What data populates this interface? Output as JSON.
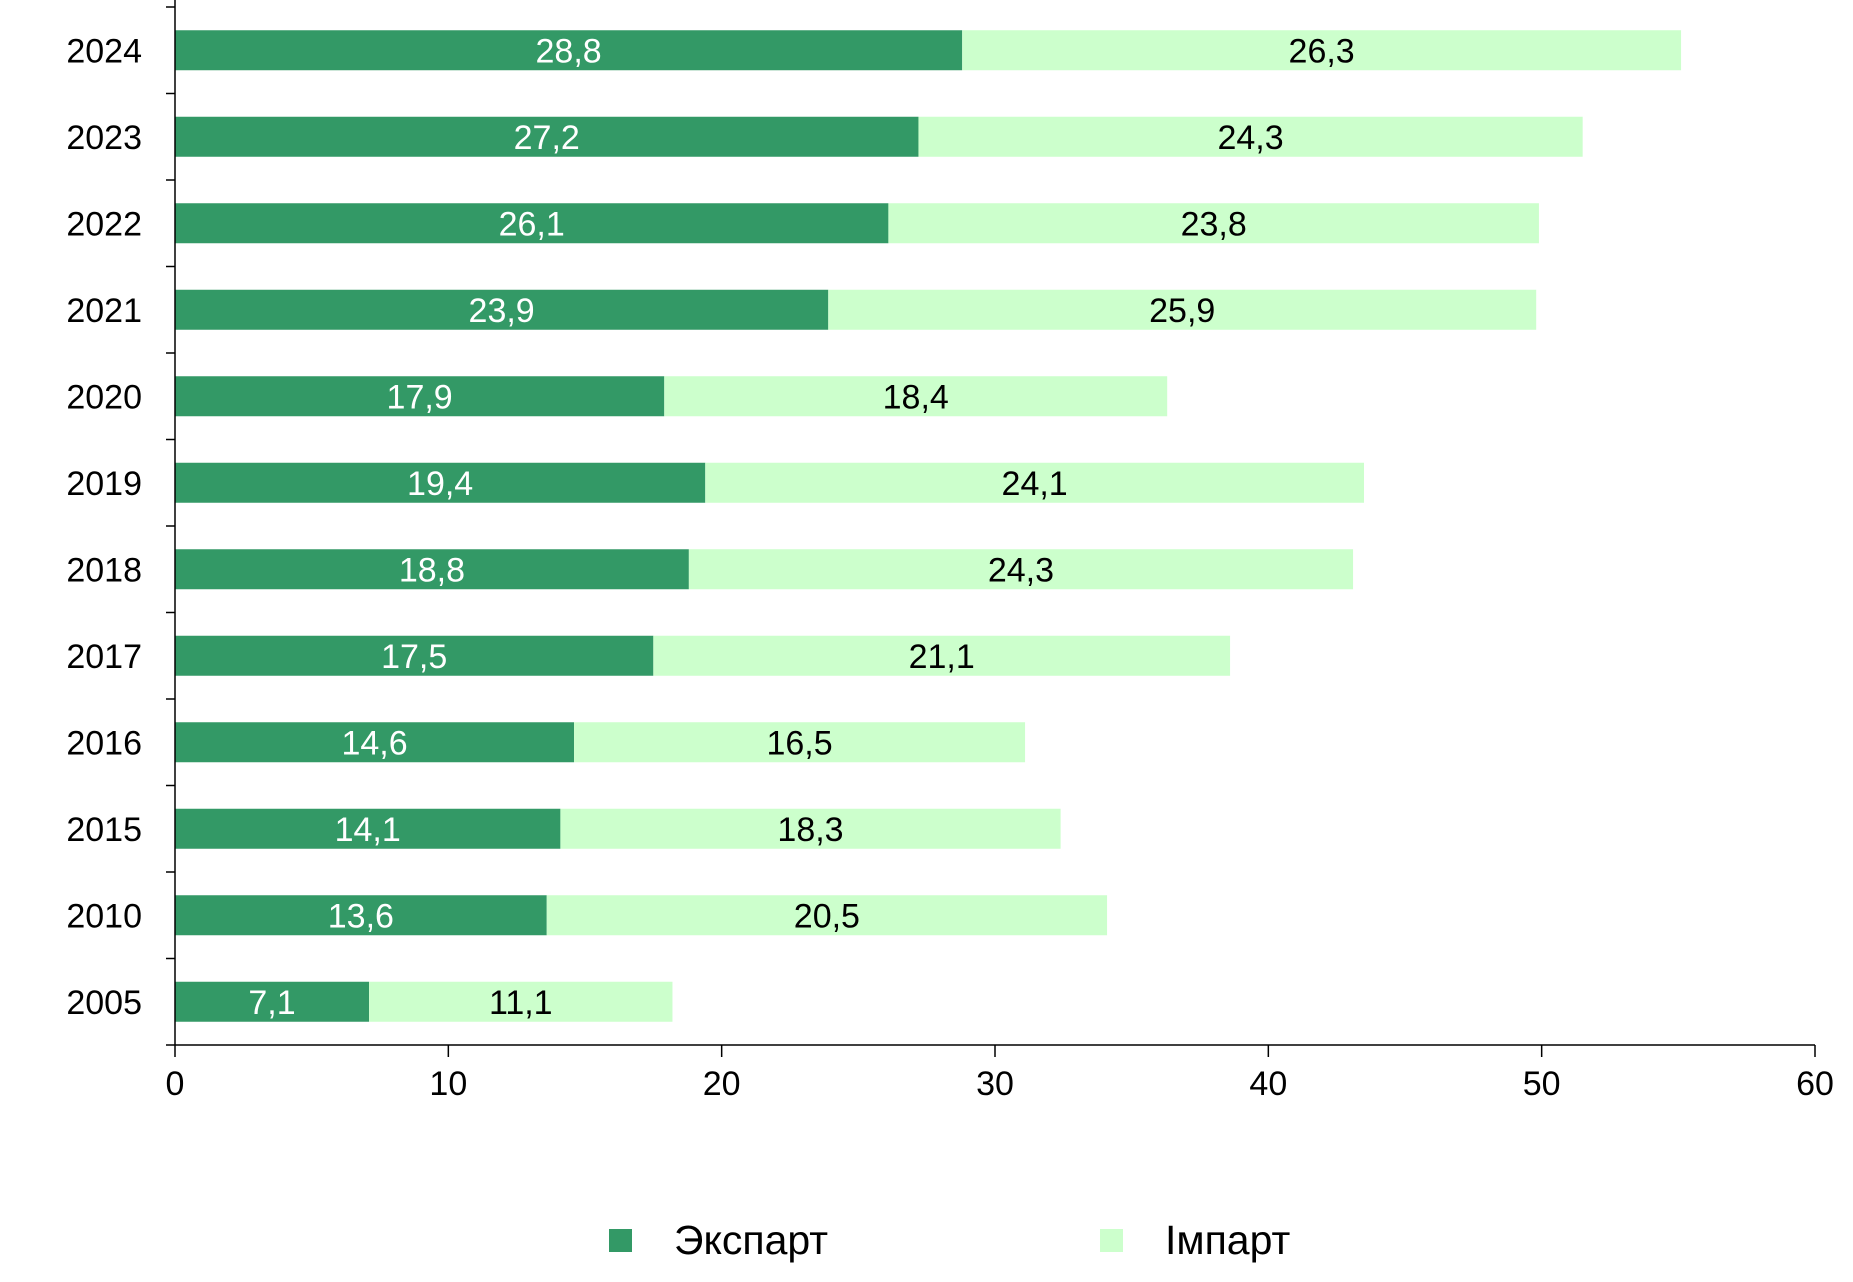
{
  "chart_data": {
    "type": "bar",
    "orientation": "horizontal",
    "stacked": true,
    "categories": [
      "2024",
      "2023",
      "2022",
      "2021",
      "2020",
      "2019",
      "2018",
      "2017",
      "2016",
      "2015",
      "2010",
      "2005"
    ],
    "series": [
      {
        "name": "Экспарт",
        "color": "#339966",
        "label_color": "#ffffff",
        "values": [
          28.8,
          27.2,
          26.1,
          23.9,
          17.9,
          19.4,
          18.8,
          17.5,
          14.6,
          14.1,
          13.6,
          7.1
        ],
        "labels": [
          "28,8",
          "27,2",
          "26,1",
          "23,9",
          "17,9",
          "19,4",
          "18,8",
          "17,5",
          "14,6",
          "14,1",
          "13,6",
          "7,1"
        ]
      },
      {
        "name": "Імпарт",
        "color": "#ccffcc",
        "label_color": "#000000",
        "values": [
          26.3,
          24.3,
          23.8,
          25.9,
          18.4,
          24.1,
          24.3,
          21.1,
          16.5,
          18.3,
          20.5,
          11.1
        ],
        "labels": [
          "26,3",
          "24,3",
          "23,8",
          "25,9",
          "18,4",
          "24,1",
          "24,3",
          "21,1",
          "16,5",
          "18,3",
          "20,5",
          "11,1"
        ]
      }
    ],
    "xlim": [
      0,
      60
    ],
    "xticks": [
      0,
      10,
      20,
      30,
      40,
      50,
      60
    ],
    "xtick_labels": [
      "0",
      "10",
      "20",
      "30",
      "40",
      "50",
      "60"
    ],
    "grid": false,
    "legend_position": "bottom"
  }
}
